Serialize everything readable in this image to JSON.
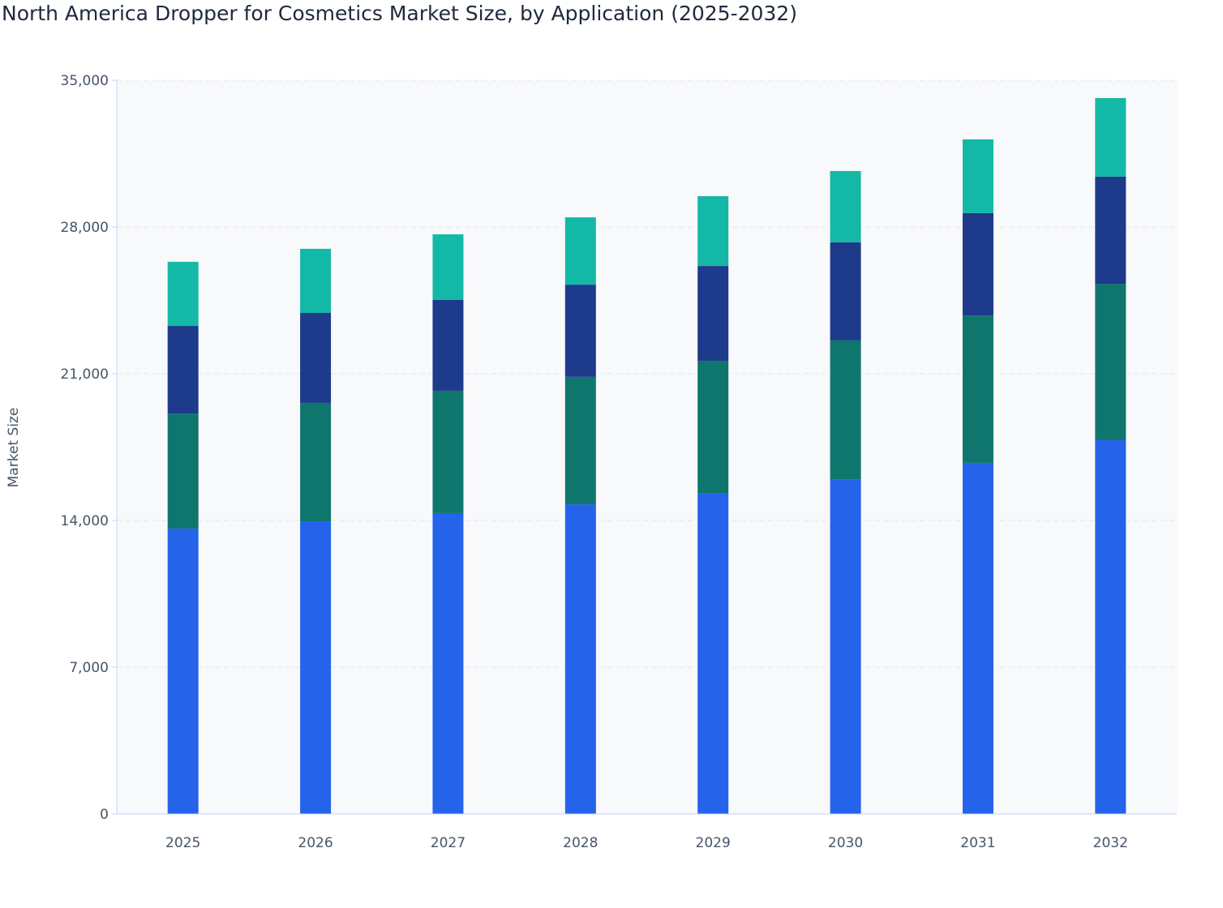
{
  "chart_data": {
    "type": "bar",
    "stacked": true,
    "title": "North America Dropper for Cosmetics Market Size, by Application (2025-2032)",
    "xlabel": "",
    "ylabel": "Market Size",
    "ylim": [
      0,
      35000
    ],
    "yticks": [
      "0",
      "7,000",
      "14,000",
      "21,000",
      "28,000",
      "35,000"
    ],
    "ytick_values": [
      0,
      7000,
      14000,
      21000,
      28000,
      35000
    ],
    "grid": true,
    "legend": "none",
    "categories": [
      "2025",
      "2026",
      "2027",
      "2028",
      "2029",
      "2030",
      "2031",
      "2032"
    ],
    "series": [
      {
        "color": "#2563eb",
        "values": [
          13610,
          13960,
          14350,
          14770,
          15280,
          15970,
          16750,
          17830
        ]
      },
      {
        "color": "#0f766e",
        "values": [
          5490,
          5650,
          5840,
          6080,
          6340,
          6620,
          7030,
          7460
        ]
      },
      {
        "color": "#1e3a8a",
        "values": [
          4180,
          4290,
          4330,
          4400,
          4520,
          4680,
          4880,
          5110
        ]
      },
      {
        "color": "#14b8a6",
        "values": [
          3060,
          3060,
          3130,
          3210,
          3330,
          3400,
          3520,
          3750
        ]
      }
    ]
  }
}
